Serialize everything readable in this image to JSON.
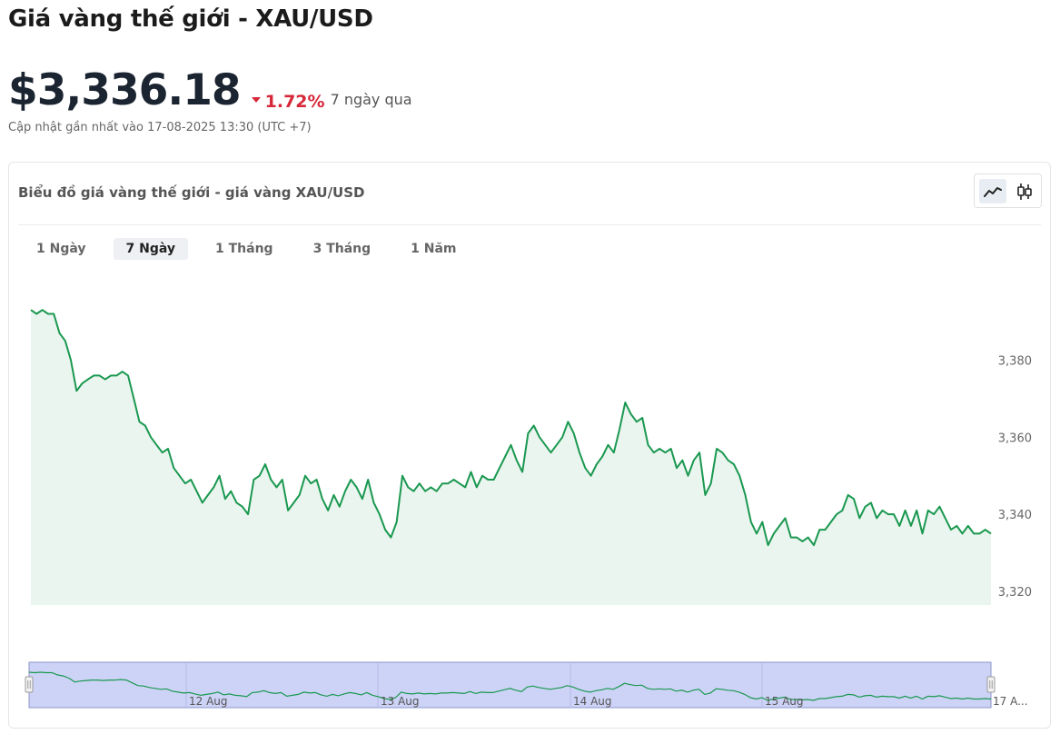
{
  "page": {
    "title": "Giá vàng thế giới - XAU/USD",
    "price": "$3,336.18",
    "change": "1.72%",
    "change_period": "7 ngày qua",
    "updated": "Cập nhật gần nhất vào 17-08-2025 13:30 (UTC +7)"
  },
  "card": {
    "title": "Biểu đồ giá vàng thế giới - giá vàng XAU/USD",
    "tabs": [
      {
        "label": "1 Ngày"
      },
      {
        "label": "7 Ngày"
      },
      {
        "label": "1 Tháng"
      },
      {
        "label": "3 Tháng"
      },
      {
        "label": "1 Năm"
      }
    ],
    "active_tab": "7 Ngày"
  },
  "colors": {
    "line": "#1a9850",
    "area": "#ebf5ef",
    "down": "#d62839",
    "navigator_fill": "#cdd3f7",
    "navigator_border": "#8c95c9"
  },
  "chart_data": {
    "type": "area",
    "title": "",
    "xlabel": "",
    "ylabel": "",
    "ylim": [
      3316,
      3398
    ],
    "y_ticks": [
      3320,
      3340,
      3360,
      3380
    ],
    "y_tick_labels": [
      "3,320",
      "3,340",
      "3,360",
      "3,380"
    ],
    "navigator_labels": [
      "12 Aug",
      "13 Aug",
      "14 Aug",
      "15 Aug",
      "17 A..."
    ],
    "series": [
      {
        "values": [
          3393,
          3392,
          3393,
          3392,
          3392,
          3387,
          3385,
          3380,
          3372,
          3374,
          3375,
          3376,
          3376,
          3375,
          3376,
          3376,
          3377,
          3376,
          3370,
          3364,
          3363,
          3360,
          3358,
          3356,
          3357,
          3352,
          3350,
          3348,
          3349,
          3346,
          3343,
          3345,
          3347,
          3350,
          3344,
          3346,
          3343,
          3342,
          3340,
          3349,
          3350,
          3353,
          3349,
          3347,
          3349,
          3341,
          3343,
          3345,
          3350,
          3348,
          3349,
          3344,
          3341,
          3345,
          3342,
          3346,
          3349,
          3347,
          3344,
          3349,
          3343,
          3340,
          3336,
          3334,
          3338,
          3350,
          3347,
          3346,
          3348,
          3346,
          3347,
          3346,
          3348,
          3348,
          3349,
          3348,
          3347,
          3351,
          3347,
          3350,
          3349,
          3349,
          3352,
          3355,
          3358,
          3354,
          3351,
          3361,
          3363,
          3360,
          3358,
          3356,
          3358,
          3360,
          3364,
          3361,
          3356,
          3352,
          3350,
          3353,
          3355,
          3358,
          3356,
          3362,
          3369,
          3366,
          3364,
          3365,
          3358,
          3356,
          3357,
          3356,
          3357,
          3352,
          3354,
          3350,
          3354,
          3356,
          3345,
          3348,
          3357,
          3356,
          3354,
          3353,
          3350,
          3345,
          3338,
          3335,
          3338,
          3332,
          3335,
          3337,
          3339,
          3334,
          3334,
          3333,
          3334,
          3332,
          3336,
          3336,
          3338,
          3340,
          3341,
          3345,
          3344,
          3339,
          3342,
          3343,
          3339,
          3341,
          3340,
          3340,
          3337,
          3341,
          3337,
          3341,
          3335,
          3341,
          3340,
          3342,
          3339,
          3336,
          3337,
          3335,
          3337,
          3335,
          3335,
          3336,
          3335
        ]
      }
    ]
  }
}
